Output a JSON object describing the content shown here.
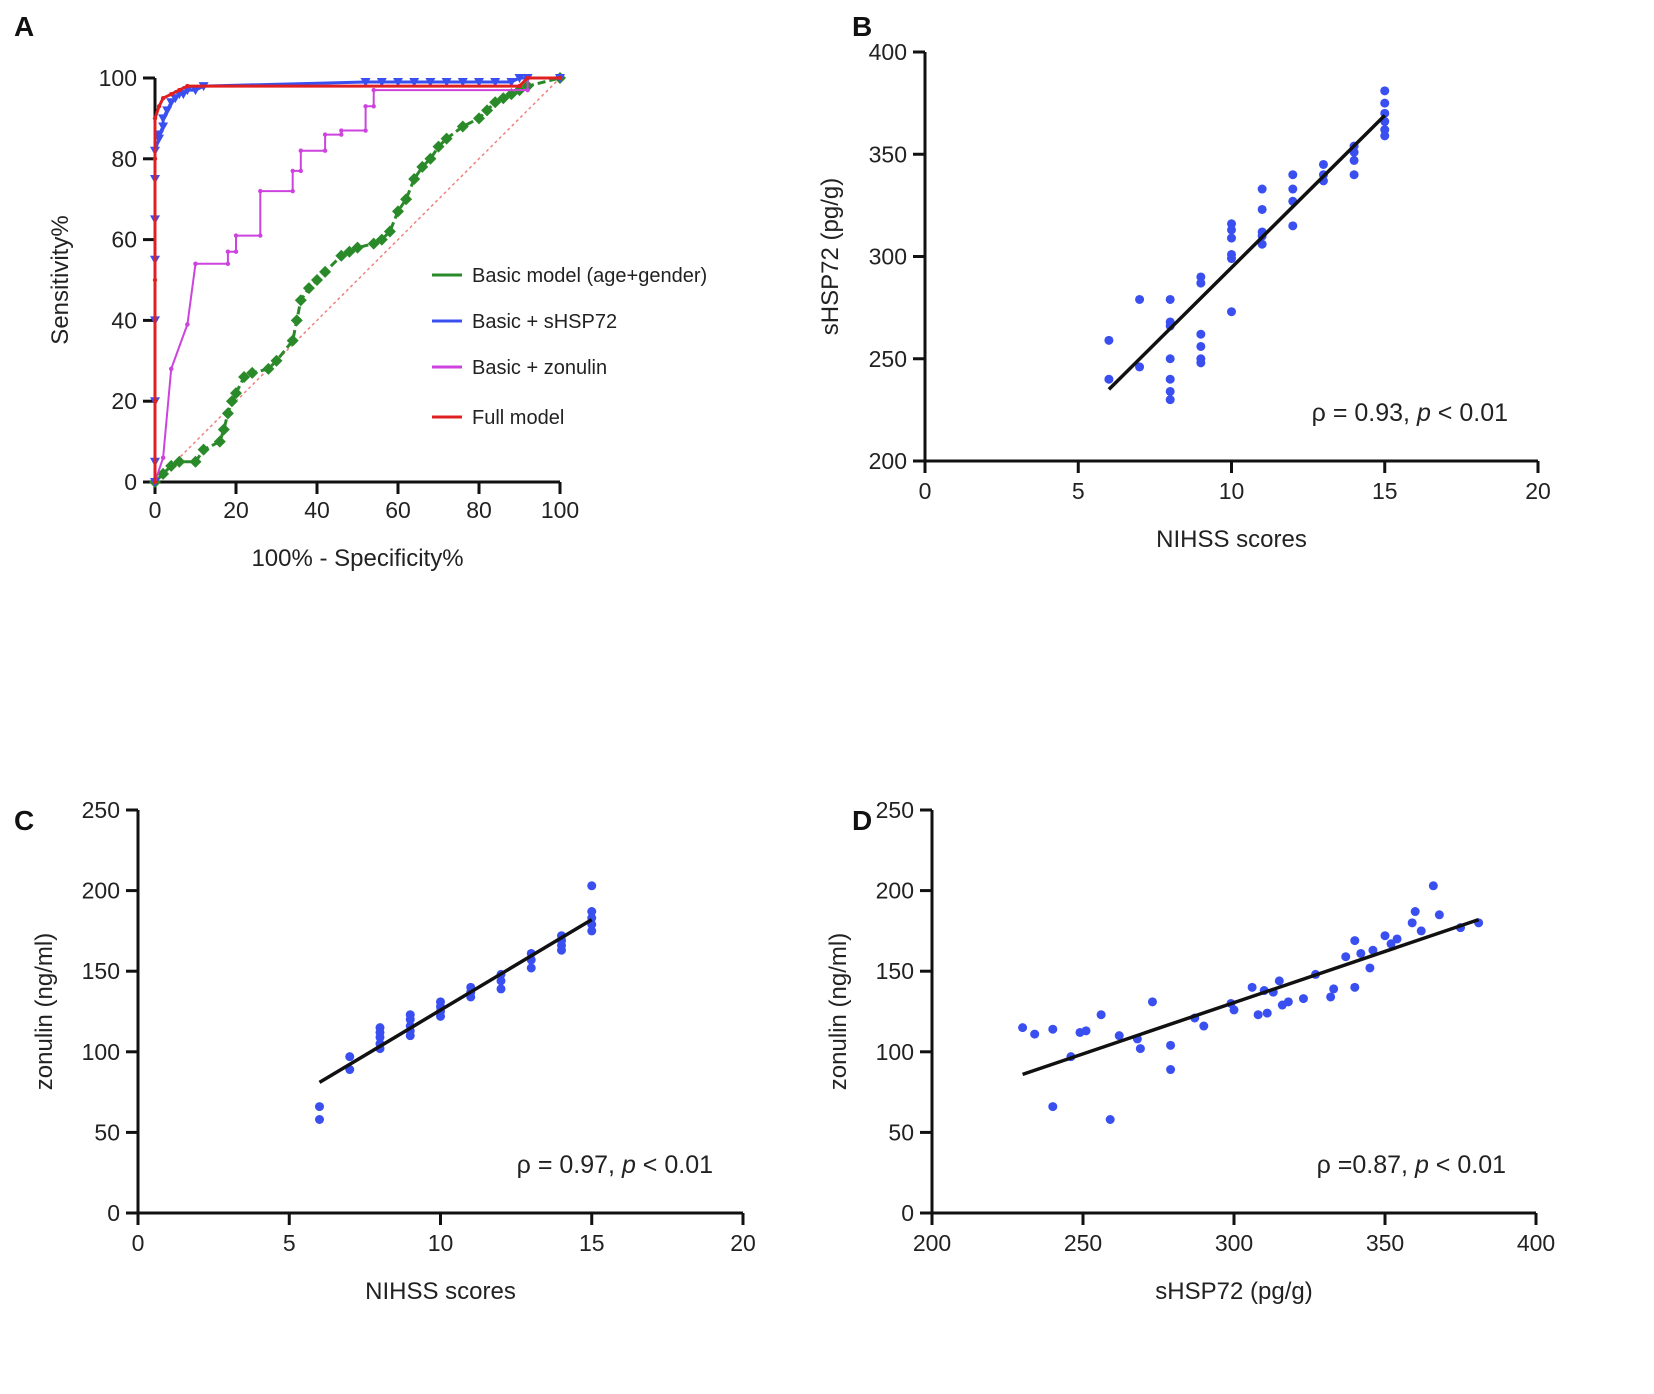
{
  "chart_data": [
    {
      "panel": "A",
      "type": "line",
      "xlabel": "100% - Specificity%",
      "ylabel": "Sensitivity%",
      "xlim": [
        0,
        100
      ],
      "ylim": [
        0,
        100
      ],
      "xticks": [
        0,
        20,
        40,
        60,
        80,
        100
      ],
      "yticks": [
        0,
        20,
        40,
        60,
        80,
        100
      ],
      "legend_position": "right",
      "reference_line": {
        "x": [
          0,
          100
        ],
        "y": [
          0,
          100
        ],
        "color": "#f08080"
      },
      "series": [
        {
          "name": "Basic model (age+gender)",
          "color": "#2a8a2a",
          "marker": "diamond",
          "x": [
            0,
            2,
            4,
            6,
            10,
            12,
            16,
            17,
            18,
            19,
            20,
            22,
            24,
            28,
            30,
            34,
            35,
            36,
            38,
            40,
            42,
            46,
            48,
            50,
            54,
            56,
            58,
            60,
            62,
            64,
            66,
            68,
            70,
            72,
            76,
            80,
            82,
            84,
            86,
            88,
            90,
            92,
            100
          ],
          "y": [
            0,
            2,
            4,
            5,
            5,
            8,
            10,
            13,
            17,
            20,
            22,
            26,
            27,
            28,
            30,
            35,
            40,
            45,
            48,
            50,
            52,
            56,
            57,
            58,
            59,
            60,
            62,
            67,
            70,
            75,
            78,
            80,
            83,
            85,
            88,
            90,
            92,
            94,
            95,
            96,
            97,
            98,
            100
          ]
        },
        {
          "name": "Basic + sHSP72",
          "color": "#3a4ff0",
          "marker": "triangle",
          "x": [
            0,
            0,
            0,
            0,
            0,
            0,
            0,
            0,
            1,
            1,
            2,
            2,
            3,
            4,
            5,
            6,
            7,
            8,
            10,
            12,
            52,
            56,
            60,
            64,
            68,
            72,
            76,
            80,
            84,
            88,
            90,
            92,
            100
          ],
          "y": [
            0,
            5,
            20,
            40,
            55,
            65,
            75,
            82,
            85,
            86,
            88,
            90,
            92,
            94,
            95,
            96,
            96,
            97,
            97,
            98,
            99,
            99,
            99,
            99,
            99,
            99,
            99,
            99,
            99,
            99,
            100,
            100,
            100
          ]
        },
        {
          "name": "Basic + zonulin",
          "color": "#cc44dd",
          "marker": "dot",
          "x": [
            0,
            2,
            2,
            4,
            4,
            8,
            8,
            10,
            10,
            18,
            18,
            20,
            20,
            26,
            26,
            34,
            34,
            36,
            36,
            42,
            42,
            46,
            46,
            52,
            52,
            54,
            54,
            92,
            92,
            100
          ],
          "y": [
            0,
            6,
            6,
            28,
            28,
            39,
            39,
            54,
            54,
            54,
            57,
            57,
            61,
            61,
            72,
            72,
            77,
            77,
            82,
            82,
            86,
            86,
            87,
            87,
            93,
            93,
            97,
            97,
            100,
            100
          ]
        },
        {
          "name": "Full model",
          "color": "#e02020",
          "marker": "dot",
          "x": [
            0,
            0,
            0,
            0,
            0,
            1,
            2,
            4,
            6,
            8,
            90,
            92,
            100
          ],
          "y": [
            0,
            20,
            50,
            80,
            90,
            93,
            95,
            96,
            97,
            98,
            98,
            100,
            100
          ]
        }
      ]
    },
    {
      "panel": "B",
      "type": "scatter",
      "xlabel": "NIHSS scores",
      "ylabel": "sHSP72 (pg/g)",
      "xlim": [
        0,
        20
      ],
      "ylim": [
        200,
        400
      ],
      "xticks": [
        0,
        5,
        10,
        15,
        20
      ],
      "yticks": [
        200,
        250,
        300,
        350,
        400
      ],
      "annotation": {
        "rho": "ρ = 0.93,",
        "p_symbol": "p",
        "p_value": "< 0.01"
      },
      "point_color": "#3a4ff0",
      "points": [
        [
          6,
          259
        ],
        [
          6,
          240
        ],
        [
          7,
          279
        ],
        [
          7,
          246
        ],
        [
          8,
          279
        ],
        [
          8,
          268
        ],
        [
          8,
          266
        ],
        [
          8,
          250
        ],
        [
          8,
          240
        ],
        [
          8,
          234
        ],
        [
          8,
          230
        ],
        [
          9,
          290
        ],
        [
          9,
          287
        ],
        [
          9,
          262
        ],
        [
          9,
          256
        ],
        [
          9,
          250
        ],
        [
          9,
          248
        ],
        [
          10,
          316
        ],
        [
          10,
          313
        ],
        [
          10,
          309
        ],
        [
          10,
          301
        ],
        [
          10,
          299
        ],
        [
          10,
          273
        ],
        [
          11,
          333
        ],
        [
          11,
          323
        ],
        [
          11,
          312
        ],
        [
          11,
          310
        ],
        [
          11,
          306
        ],
        [
          12,
          340
        ],
        [
          12,
          333
        ],
        [
          12,
          327
        ],
        [
          12,
          315
        ],
        [
          13,
          345
        ],
        [
          13,
          340
        ],
        [
          13,
          337
        ],
        [
          14,
          354
        ],
        [
          14,
          351
        ],
        [
          14,
          347
        ],
        [
          14,
          340
        ],
        [
          15,
          381
        ],
        [
          15,
          375
        ],
        [
          15,
          370
        ],
        [
          15,
          366
        ],
        [
          15,
          362
        ],
        [
          15,
          359
        ]
      ],
      "fit": {
        "x": [
          6,
          15
        ],
        "y": [
          235,
          369
        ]
      }
    },
    {
      "panel": "C",
      "type": "scatter",
      "xlabel": "NIHSS scores",
      "ylabel": "zonulin (ng/ml)",
      "xlim": [
        0,
        20
      ],
      "ylim": [
        0,
        250
      ],
      "xticks": [
        0,
        5,
        10,
        15,
        20
      ],
      "yticks": [
        0,
        50,
        100,
        150,
        200,
        250
      ],
      "annotation": {
        "rho": "ρ = 0.97,",
        "p_symbol": "p",
        "p_value": "< 0.01"
      },
      "point_color": "#3a4ff0",
      "points": [
        [
          6,
          66
        ],
        [
          6,
          58
        ],
        [
          7,
          97
        ],
        [
          7,
          89
        ],
        [
          8,
          115
        ],
        [
          8,
          112
        ],
        [
          8,
          109
        ],
        [
          8,
          105
        ],
        [
          8,
          102
        ],
        [
          9,
          123
        ],
        [
          9,
          120
        ],
        [
          9,
          116
        ],
        [
          9,
          113
        ],
        [
          9,
          110
        ],
        [
          10,
          131
        ],
        [
          10,
          128
        ],
        [
          10,
          125
        ],
        [
          10,
          122
        ],
        [
          11,
          140
        ],
        [
          11,
          137
        ],
        [
          11,
          134
        ],
        [
          12,
          148
        ],
        [
          12,
          144
        ],
        [
          12,
          139
        ],
        [
          13,
          161
        ],
        [
          13,
          157
        ],
        [
          13,
          152
        ],
        [
          14,
          172
        ],
        [
          14,
          169
        ],
        [
          14,
          166
        ],
        [
          14,
          163
        ],
        [
          15,
          203
        ],
        [
          15,
          187
        ],
        [
          15,
          183
        ],
        [
          15,
          179
        ],
        [
          15,
          175
        ]
      ],
      "fit": {
        "x": [
          6,
          15
        ],
        "y": [
          81,
          182
        ]
      }
    },
    {
      "panel": "D",
      "type": "scatter",
      "xlabel": "sHSP72 (pg/g)",
      "ylabel": "zonulin (ng/ml)",
      "xlim": [
        200,
        400
      ],
      "ylim": [
        0,
        250
      ],
      "xticks": [
        200,
        250,
        300,
        350,
        400
      ],
      "yticks": [
        0,
        50,
        100,
        150,
        200,
        250
      ],
      "annotation": {
        "rho": "ρ =0.87,",
        "p_symbol": "p",
        "p_value": "< 0.01"
      },
      "point_color": "#3a4ff0",
      "points": [
        [
          230,
          115
        ],
        [
          234,
          111
        ],
        [
          240,
          114
        ],
        [
          240,
          66
        ],
        [
          246,
          97
        ],
        [
          249,
          112
        ],
        [
          251,
          113
        ],
        [
          256,
          123
        ],
        [
          259,
          58
        ],
        [
          262,
          110
        ],
        [
          268,
          108
        ],
        [
          269,
          102
        ],
        [
          273,
          131
        ],
        [
          279,
          104
        ],
        [
          279,
          89
        ],
        [
          287,
          121
        ],
        [
          290,
          116
        ],
        [
          299,
          130
        ],
        [
          300,
          126
        ],
        [
          306,
          140
        ],
        [
          308,
          123
        ],
        [
          310,
          138
        ],
        [
          311,
          124
        ],
        [
          313,
          137
        ],
        [
          315,
          144
        ],
        [
          316,
          129
        ],
        [
          318,
          131
        ],
        [
          323,
          133
        ],
        [
          327,
          148
        ],
        [
          332,
          134
        ],
        [
          333,
          139
        ],
        [
          337,
          159
        ],
        [
          340,
          169
        ],
        [
          340,
          140
        ],
        [
          342,
          161
        ],
        [
          345,
          152
        ],
        [
          346,
          163
        ],
        [
          350,
          172
        ],
        [
          352,
          167
        ],
        [
          354,
          170
        ],
        [
          359,
          180
        ],
        [
          360,
          187
        ],
        [
          362,
          175
        ],
        [
          366,
          203
        ],
        [
          368,
          185
        ],
        [
          375,
          177
        ],
        [
          381,
          180
        ]
      ],
      "fit": {
        "x": [
          230,
          381
        ],
        "y": [
          86,
          182
        ]
      }
    }
  ],
  "panels": {
    "A": {
      "label": "A"
    },
    "B": {
      "label": "B"
    },
    "C": {
      "label": "C"
    },
    "D": {
      "label": "D"
    }
  }
}
